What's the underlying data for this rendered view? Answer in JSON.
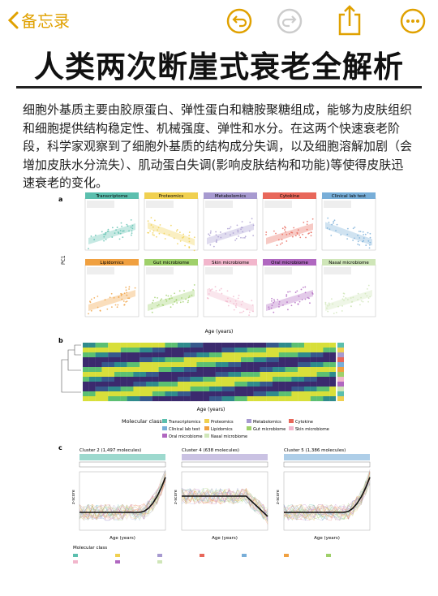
{
  "nav": {
    "back_label": "备忘录"
  },
  "title": "人类两次断崖式衰老全解析",
  "body": "细胞外基质主要由胶原蛋白、弹性蛋白和糖胺聚糖组成，能够为皮肤组织和细胞提供结构稳定性、机械强度、弹性和水分。在这两个快速衰老阶段，科学家观察到了细胞外基质的结构成分失调，以及细胞溶解加剧（会增加皮肤水分流失）、肌动蛋白失调(影响皮肤结构和功能)等使得皮肤迅速衰老的变化。",
  "figure": {
    "panel_a": {
      "label": "a",
      "y_label": "PC1",
      "x_label": "Age (years)",
      "subplots": [
        "Transcriptome",
        "Proteomics",
        "Metabolomics",
        "Cytokine",
        "Clinical lab test",
        "Lipidomics",
        "Gut microbiome",
        "Skin microbiome",
        "Oral microbiome",
        "Nasal microbiome"
      ]
    },
    "panel_b": {
      "label": "b",
      "x_label": "Age (years)",
      "legend_title": "Molecular class",
      "legend": [
        "Transcriptomics",
        "Proteomics",
        "Metabolomics",
        "Cytokine",
        "Clinical lab test",
        "Lipidomics",
        "Gut microbiome",
        "Skin microbiome",
        "Oral microbiome",
        "Nasal microbiome"
      ]
    },
    "panel_c": {
      "label": "c",
      "x_label": "Age (years)",
      "y_label": "z-score",
      "legend_title": "Molecular class",
      "clusters": [
        "Cluster 2 (1,497 molecules)",
        "Cluster 4 (638 molecules)",
        "Cluster 5 (1,386 molecules)"
      ]
    }
  }
}
